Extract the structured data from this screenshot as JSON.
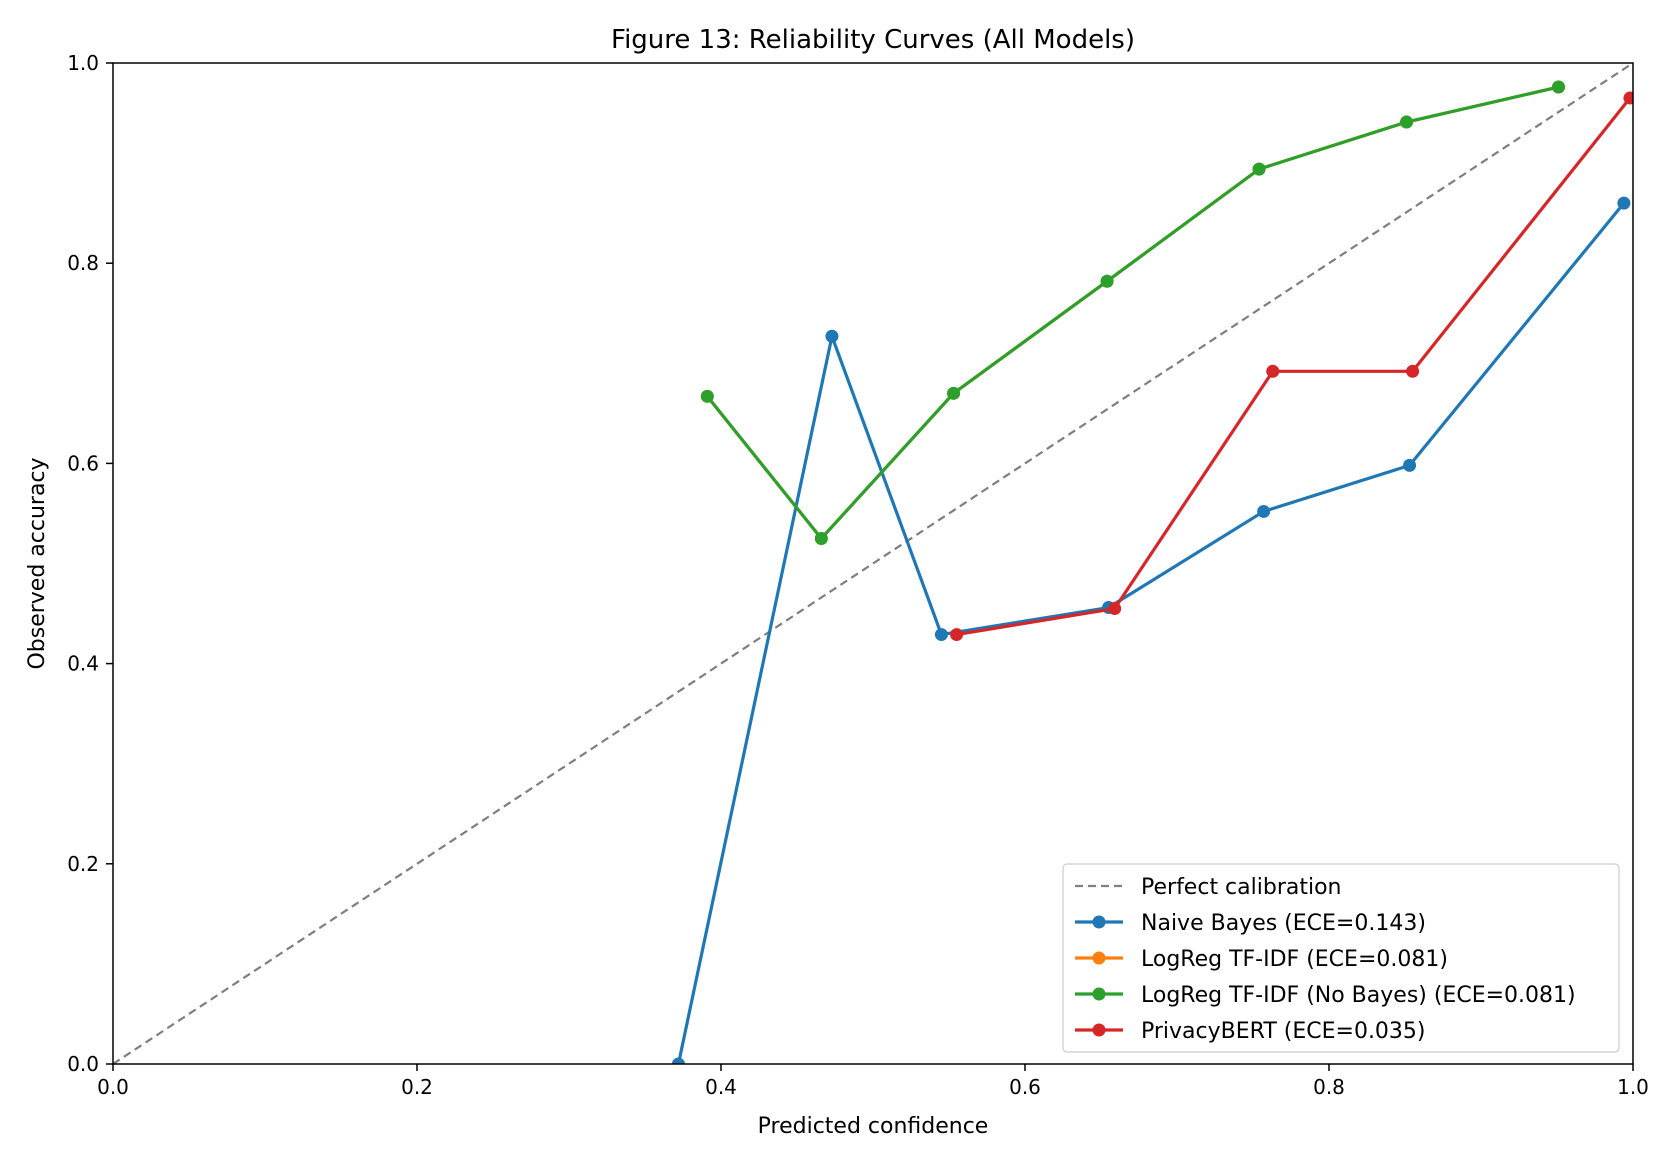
{
  "chart_data": {
    "type": "line",
    "title": "Figure 13: Reliability Curves (All Models)",
    "xlabel": "Predicted confidence",
    "ylabel": "Observed accuracy",
    "xlim": [
      0,
      1
    ],
    "ylim": [
      0,
      1
    ],
    "xticks": [
      "0.0",
      "0.2",
      "0.4",
      "0.6",
      "0.8",
      "1.0"
    ],
    "yticks": [
      "0.0",
      "0.2",
      "0.4",
      "0.6",
      "0.8",
      "1.0"
    ],
    "grid": false,
    "legend_position": "bottom-right",
    "reference_line": {
      "name": "Perfect calibration",
      "color": "#7f7f7f",
      "style": "dashed",
      "points": [
        [
          0,
          0
        ],
        [
          1,
          1
        ]
      ]
    },
    "series": [
      {
        "name": "Naive Bayes (ECE=0.143)",
        "color": "#1f77b4",
        "points": [
          [
            0.372,
            0.0
          ],
          [
            0.473,
            0.727
          ],
          [
            0.545,
            0.429
          ],
          [
            0.655,
            0.456
          ],
          [
            0.757,
            0.552
          ],
          [
            0.853,
            0.598
          ],
          [
            0.994,
            0.86
          ]
        ]
      },
      {
        "name": "LogReg TF-IDF (ECE=0.081)",
        "color": "#ff7f0e",
        "points": [
          [
            0.391,
            0.667
          ],
          [
            0.466,
            0.525
          ],
          [
            0.553,
            0.67
          ],
          [
            0.654,
            0.782
          ],
          [
            0.754,
            0.894
          ],
          [
            0.851,
            0.941
          ],
          [
            0.951,
            0.976
          ]
        ]
      },
      {
        "name": "LogReg TF-IDF (No Bayes) (ECE=0.081)",
        "color": "#2ca02c",
        "points": [
          [
            0.391,
            0.667
          ],
          [
            0.466,
            0.525
          ],
          [
            0.553,
            0.67
          ],
          [
            0.654,
            0.782
          ],
          [
            0.754,
            0.894
          ],
          [
            0.851,
            0.941
          ],
          [
            0.951,
            0.976
          ]
        ]
      },
      {
        "name": "PrivacyBERT (ECE=0.035)",
        "color": "#d62728",
        "points": [
          [
            0.555,
            0.429
          ],
          [
            0.659,
            0.455
          ],
          [
            0.763,
            0.692
          ],
          [
            0.855,
            0.692
          ],
          [
            0.998,
            0.965
          ]
        ]
      }
    ]
  }
}
